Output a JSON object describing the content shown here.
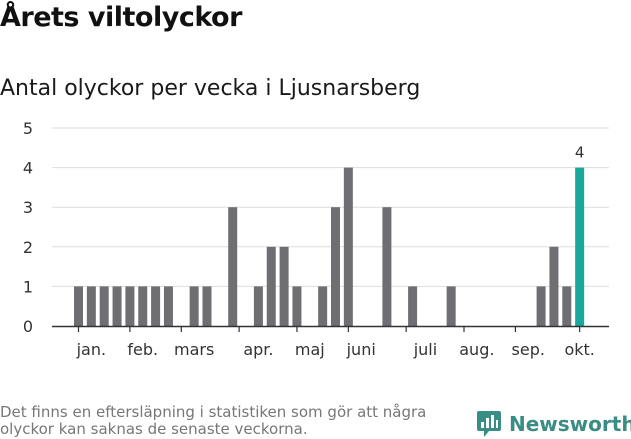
{
  "title": "Årets viltolyckor",
  "subtitle": "Antal olyckor per vecka i Ljusnarsberg",
  "footnote": "Det finns en eftersläpning i statistiken som gör att några olyckor kan saknas de senaste veckorna.",
  "brand": {
    "name": "Newsworthy",
    "icon": "newsworthy-logo-icon",
    "color": "#3a8d84"
  },
  "colors": {
    "bar": "#6e6e73",
    "highlight": "#19a89c",
    "grid": "#dddddd",
    "axis": "#333333"
  },
  "chart_data": {
    "type": "bar",
    "title": "Antal olyckor per vecka i Ljusnarsberg",
    "xlabel": "",
    "ylabel": "",
    "ylim": [
      0,
      5
    ],
    "yticks": [
      0,
      1,
      2,
      3,
      4,
      5
    ],
    "grid": true,
    "weeks": [
      1,
      2,
      3,
      4,
      5,
      6,
      7,
      8,
      9,
      10,
      11,
      12,
      13,
      14,
      15,
      16,
      17,
      18,
      19,
      20,
      21,
      22,
      23,
      24,
      25,
      26,
      27,
      28,
      29,
      30,
      31,
      32,
      33,
      34,
      35,
      36,
      37,
      38,
      39,
      40,
      41
    ],
    "values": [
      1,
      1,
      1,
      1,
      1,
      1,
      1,
      1,
      0,
      1,
      1,
      0,
      3,
      0,
      1,
      2,
      2,
      1,
      0,
      1,
      3,
      4,
      0,
      0,
      3,
      0,
      1,
      0,
      0,
      1,
      0,
      0,
      0,
      0,
      0,
      0,
      1,
      2,
      1,
      4,
      0
    ],
    "highlight": {
      "week": 40,
      "value": 4,
      "label": "4"
    },
    "month_labels": [
      {
        "label": "jan.",
        "week": 2
      },
      {
        "label": "feb.",
        "week": 6
      },
      {
        "label": "mars",
        "week": 10
      },
      {
        "label": "apr.",
        "week": 15
      },
      {
        "label": "maj",
        "week": 19
      },
      {
        "label": "juni",
        "week": 23
      },
      {
        "label": "juli",
        "week": 28
      },
      {
        "label": "aug.",
        "week": 32
      },
      {
        "label": "sep.",
        "week": 36
      },
      {
        "label": "okt.",
        "week": 40
      }
    ],
    "month_boundaries": [
      1,
      5,
      9,
      13.5,
      18,
      22,
      26.5,
      31,
      35,
      40
    ]
  }
}
